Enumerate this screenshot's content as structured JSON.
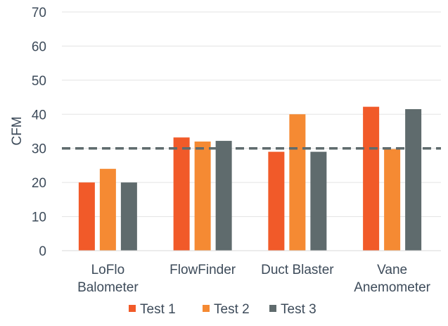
{
  "chart_data": {
    "type": "bar",
    "categories": [
      [
        "LoFlo",
        "Balometer"
      ],
      [
        "FlowFinder"
      ],
      [
        "Duct Blaster"
      ],
      [
        "Vane",
        "Anemometer"
      ]
    ],
    "series": [
      {
        "name": "Test 1",
        "color": "#f15a29",
        "values": [
          20,
          33.2,
          29,
          42.2
        ]
      },
      {
        "name": "Test 2",
        "color": "#f58a33",
        "values": [
          24,
          32,
          40,
          29.8
        ]
      },
      {
        "name": "Test 3",
        "color": "#5f6b6d",
        "values": [
          20,
          32.2,
          29,
          41.5
        ]
      }
    ],
    "reference_line": {
      "value": 30,
      "style": "dashed",
      "color": "#5f6b6d"
    },
    "ylabel": "CFM",
    "xlabel": "",
    "ylim": [
      0,
      70
    ],
    "yticks": [
      0,
      10,
      20,
      30,
      40,
      50,
      60,
      70
    ],
    "grid": true,
    "legend_position": "bottom"
  }
}
